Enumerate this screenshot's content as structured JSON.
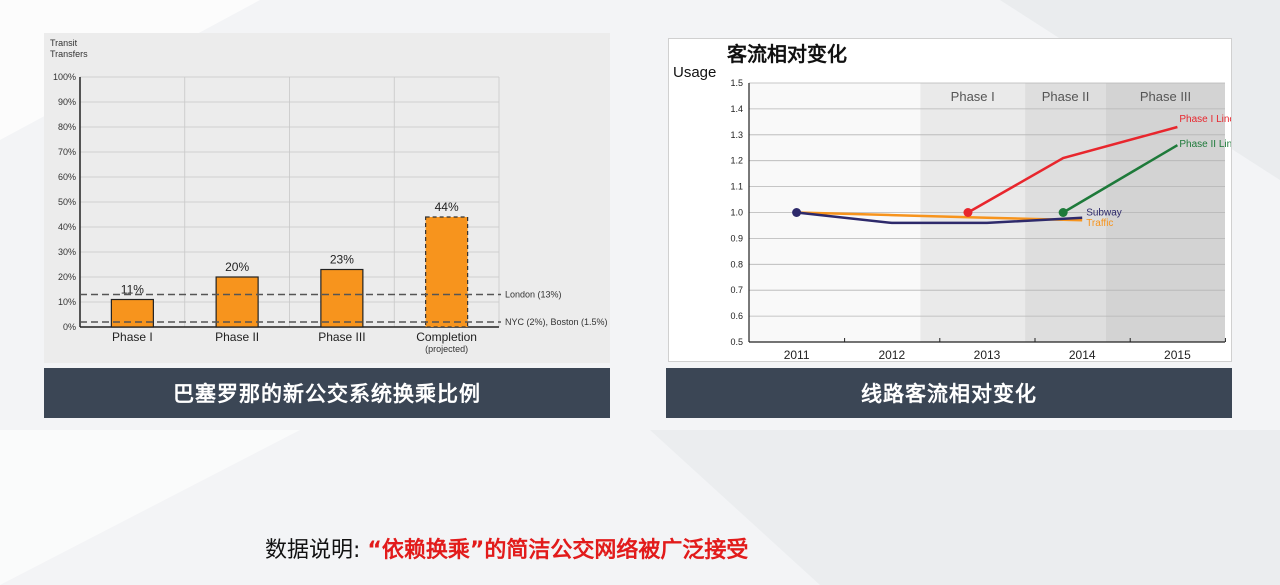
{
  "chart_data": [
    {
      "type": "bar",
      "ylabel": "Transit\nTransfers",
      "ylim": [
        0,
        100
      ],
      "yticks": [
        "0%",
        "10%",
        "20%",
        "30%",
        "40%",
        "50%",
        "60%",
        "70%",
        "80%",
        "90%",
        "100%"
      ],
      "categories": [
        "Phase I",
        "Phase II",
        "Phase III",
        "Completion"
      ],
      "category_sublabels": [
        "",
        "",
        "",
        "(projected)"
      ],
      "values": [
        11,
        20,
        23,
        44
      ],
      "value_labels": [
        "11%",
        "20%",
        "23%",
        "44%"
      ],
      "projected_index": 3,
      "reference_lines": [
        {
          "value": 13,
          "label": "London (13%)"
        },
        {
          "value": 2,
          "label": "NYC (2%), Boston (1.5%)"
        }
      ],
      "bar_color": "#f7941d",
      "grid": true
    },
    {
      "type": "line",
      "title": "客流相对变化",
      "ylabel": "Usage",
      "ylim": [
        0.5,
        1.5
      ],
      "yticks": [
        "0.5",
        "0.6",
        "0.7",
        "0.8",
        "0.9",
        "1.0",
        "1.1",
        "1.2",
        "1.3",
        "1.4",
        "1.5"
      ],
      "xlabels": [
        "2011",
        "2012",
        "2013",
        "2014",
        "2015"
      ],
      "phase_bands": [
        {
          "label": "Phase I",
          "from": 2012.3,
          "to": 2013.4,
          "color": "#eaeaea"
        },
        {
          "label": "Phase II",
          "from": 2013.4,
          "to": 2014.25,
          "color": "#dedede"
        },
        {
          "label": "Phase III",
          "from": 2014.25,
          "to": 2015.5,
          "color": "#d3d3d3"
        }
      ],
      "series": [
        {
          "name": "Phase I Lines",
          "color": "#e8262d",
          "points": [
            [
              2012.8,
              1.0
            ],
            [
              2013.8,
              1.21
            ],
            [
              2015.0,
              1.33
            ]
          ]
        },
        {
          "name": "Phase II Lines",
          "color": "#1e7a3a",
          "points": [
            [
              2013.8,
              1.0
            ],
            [
              2015.0,
              1.26
            ]
          ]
        },
        {
          "name": "Subway",
          "color": "#2e2a6b",
          "points": [
            [
              2011.0,
              1.0
            ],
            [
              2012.0,
              0.96
            ],
            [
              2013.0,
              0.96
            ],
            [
              2014.0,
              0.98
            ]
          ]
        },
        {
          "name": "Traffic",
          "color": "#f7941d",
          "points": [
            [
              2011.0,
              1.0
            ],
            [
              2012.0,
              0.99
            ],
            [
              2013.0,
              0.98
            ],
            [
              2014.0,
              0.97
            ]
          ]
        }
      ],
      "grid": true
    }
  ],
  "captions": {
    "left": "巴塞罗那的新公交系统换乘比例",
    "right": "线路客流相对变化"
  },
  "note": {
    "prefix": "数据说明: ",
    "highlight": "“依赖换乘”的简洁公交网络被广泛接受"
  }
}
